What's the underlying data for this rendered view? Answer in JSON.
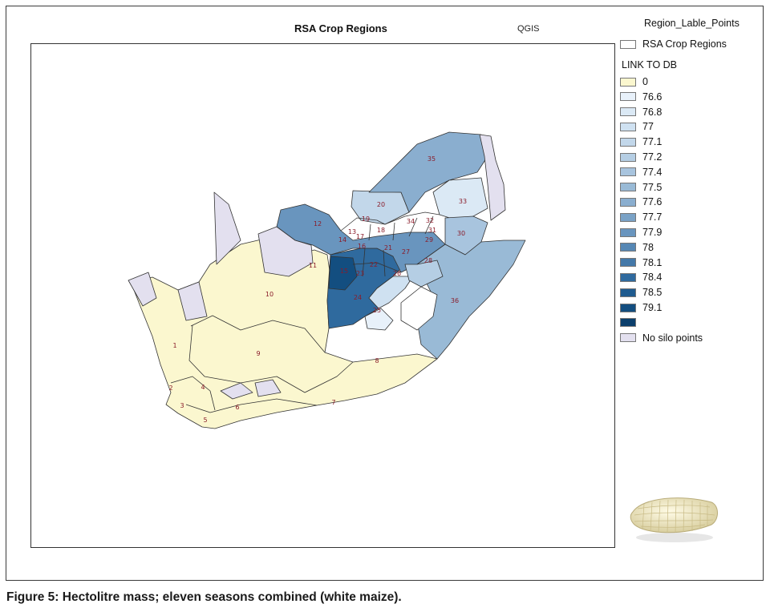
{
  "title": "RSA Crop Regions",
  "software": "QGIS",
  "legend": {
    "points_layer": "Region_Lable_Points",
    "regions_layer": "RSA Crop Regions",
    "field_title": "LINK TO DB",
    "classes": [
      {
        "label": "0",
        "color": "#fbf7cf"
      },
      {
        "label": "76.6",
        "color": "#e8f1fa"
      },
      {
        "label": "76.8",
        "color": "#dbe9f5"
      },
      {
        "label": "77",
        "color": "#cfe1f1"
      },
      {
        "label": "77.1",
        "color": "#c2d7ea"
      },
      {
        "label": "77.2",
        "color": "#b5cee4"
      },
      {
        "label": "77.4",
        "color": "#a8c4de"
      },
      {
        "label": "77.5",
        "color": "#99bad6"
      },
      {
        "label": "77.6",
        "color": "#8aaecf"
      },
      {
        "label": "77.7",
        "color": "#7aa2c6"
      },
      {
        "label": "77.9",
        "color": "#6995be"
      },
      {
        "label": "78",
        "color": "#5687b4"
      },
      {
        "label": "78.1",
        "color": "#4479a9"
      },
      {
        "label": "78.4",
        "color": "#2f6a9e"
      },
      {
        "label": "78.5",
        "color": "#1f5b8f"
      },
      {
        "label": "79.1",
        "color": "#134e80"
      },
      {
        "label": "",
        "color": "#0b3f6c"
      },
      {
        "label": "No silo points",
        "color": "#e3e0ef"
      }
    ]
  },
  "region_labels": [
    "1",
    "2",
    "3",
    "4",
    "5",
    "6",
    "7",
    "8",
    "9",
    "10",
    "11",
    "12",
    "13",
    "14",
    "15",
    "16",
    "17",
    "18",
    "19",
    "20",
    "21",
    "22",
    "23",
    "24",
    "25",
    "26",
    "27",
    "28",
    "29",
    "30",
    "31",
    "32",
    "33",
    "34",
    "35",
    "36"
  ],
  "caption": "Figure 5: Hectolitre mass; eleven seasons combined (white maize)."
}
